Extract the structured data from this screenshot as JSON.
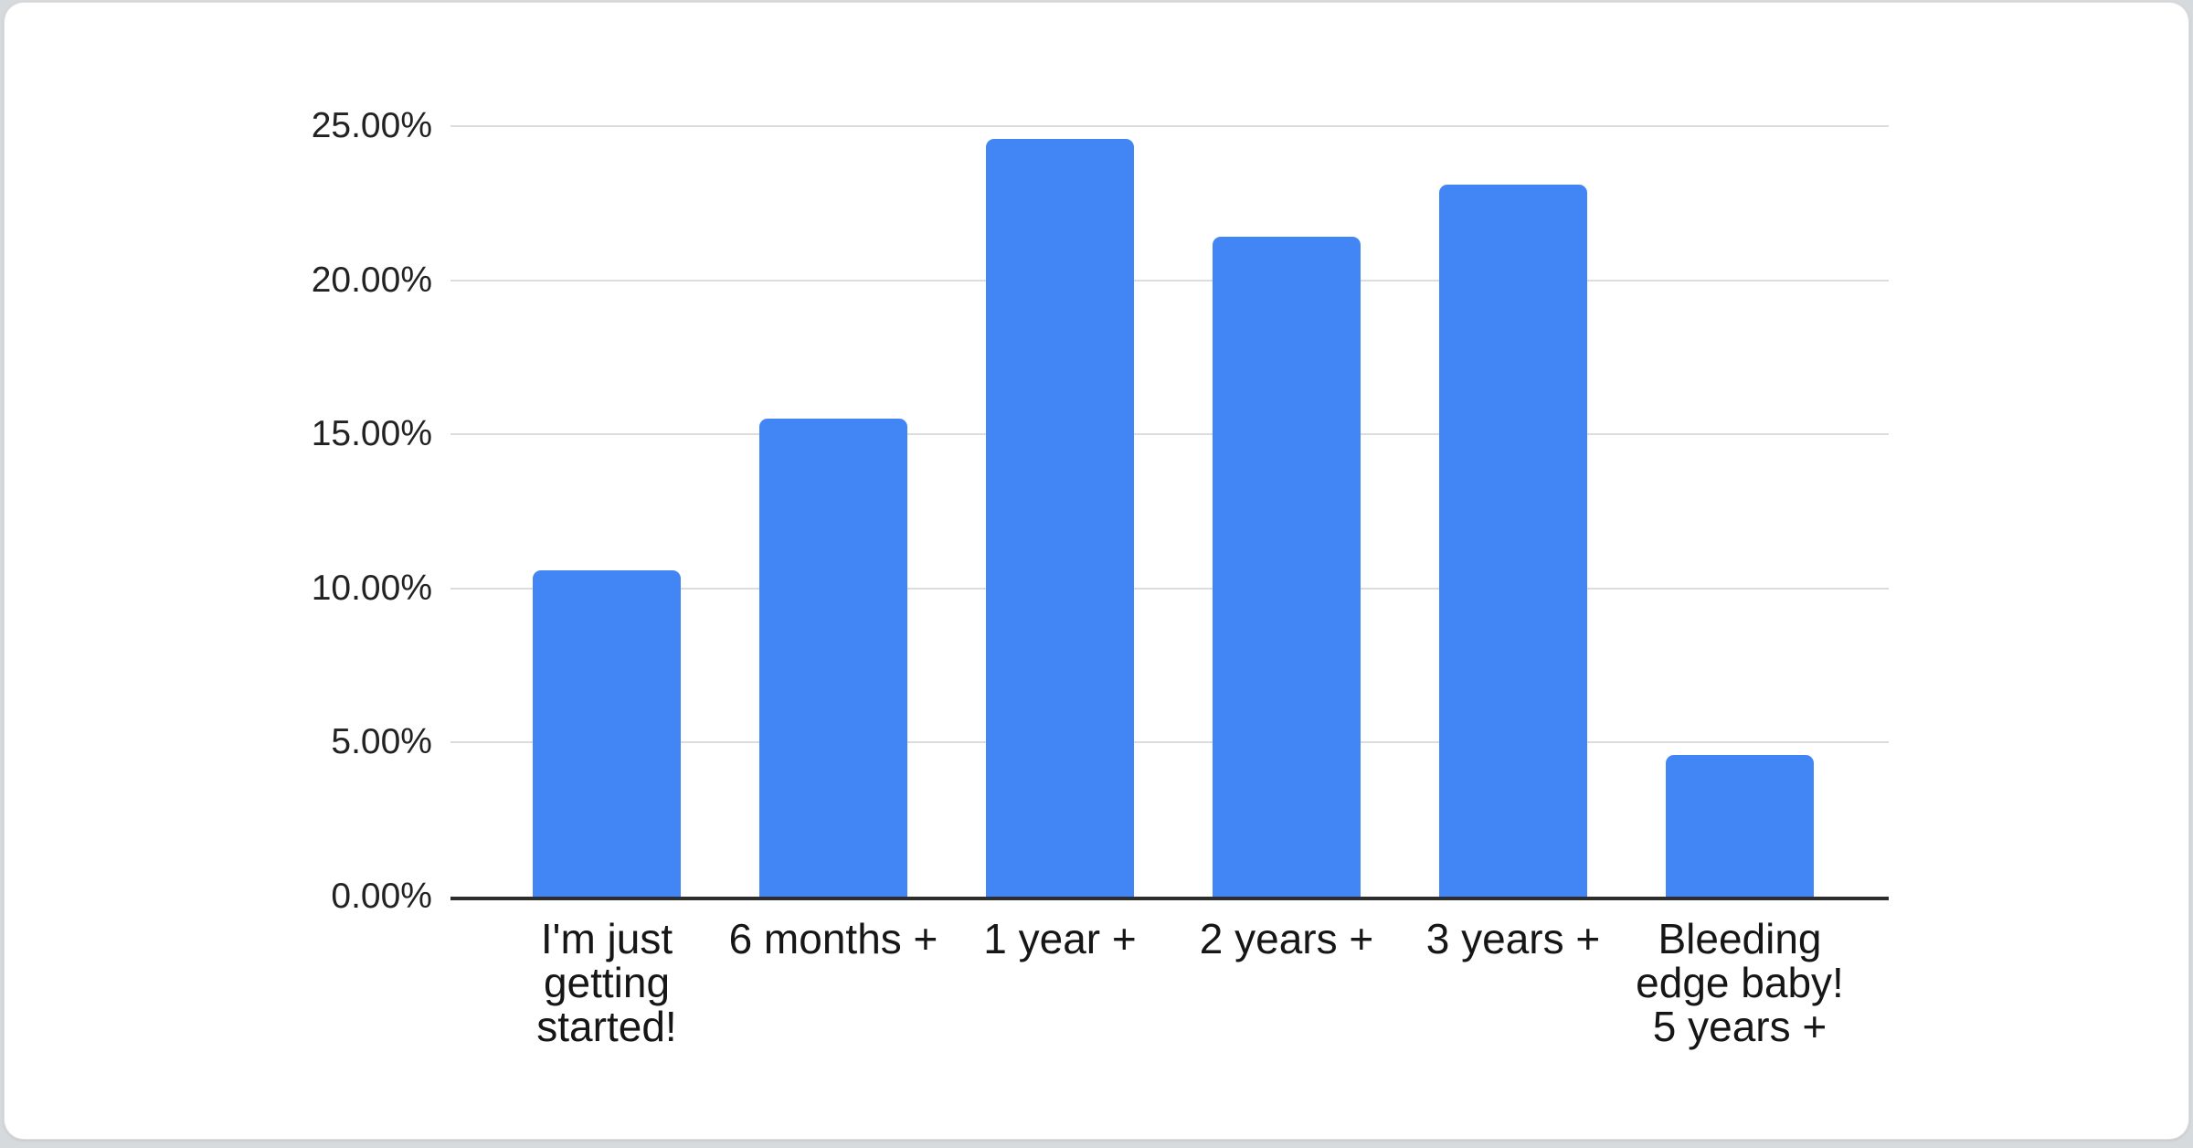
{
  "chart_data": {
    "type": "bar",
    "title": "",
    "xlabel": "",
    "ylabel": "",
    "categories": [
      "I'm just getting started!",
      "6 months +",
      "1 year +",
      "2 years +",
      "3 years +",
      "Bleeding edge baby! 5 years +"
    ],
    "category_label_lines": [
      "I'm just\ngetting\nstarted!",
      "6 months +",
      "1 year +",
      "2 years +",
      "3 years +",
      "Bleeding\nedge baby!\n5 years +"
    ],
    "values": [
      10.6,
      15.5,
      24.6,
      21.4,
      23.1,
      4.6
    ],
    "unit": "%",
    "ylim": [
      0,
      25
    ],
    "grid": true,
    "legend": "none",
    "y_ticks": [
      {
        "value": 25,
        "label": "25.00%"
      },
      {
        "value": 20,
        "label": "20.00%"
      },
      {
        "value": 15,
        "label": "15.00%"
      },
      {
        "value": 10,
        "label": "10.00%"
      },
      {
        "value": 5,
        "label": "5.00%"
      },
      {
        "value": 0,
        "label": "0.00%"
      }
    ],
    "colors": {
      "bar": "#4285f4",
      "gridline": "#dcdcdc",
      "axis_line": "#2d2d2d",
      "tick_text": "#222222",
      "category_text": "#161616",
      "card_background": "#ffffff",
      "page_background": "#d7dadd"
    }
  }
}
